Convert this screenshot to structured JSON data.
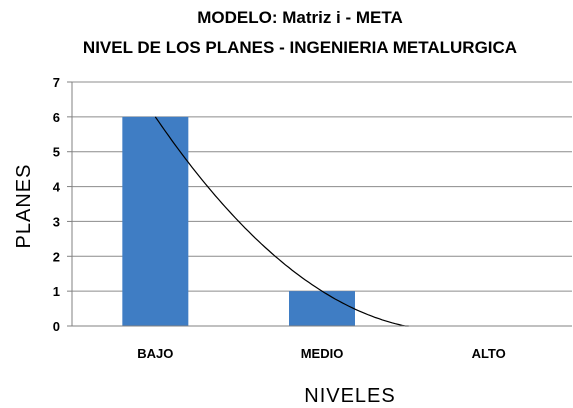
{
  "chart_data": {
    "type": "bar",
    "title": "MODELO:  Matriz  i - META",
    "subtitle": "NIVEL DE LOS PLANES  - INGENIERIA METALURGICA",
    "xlabel": "NIVELES",
    "ylabel": "PLANES",
    "categories": [
      "BAJO",
      "MEDIO",
      "ALTO"
    ],
    "values": [
      6,
      1,
      0
    ],
    "ylim": [
      0,
      7
    ],
    "yticks": [
      "0",
      "1",
      "2",
      "3",
      "4",
      "5",
      "6",
      "7"
    ],
    "grid": true,
    "legend": "none",
    "trendline": {
      "type": "polynomial",
      "color": "#000000"
    },
    "bar_color": "#3f7dc4"
  }
}
